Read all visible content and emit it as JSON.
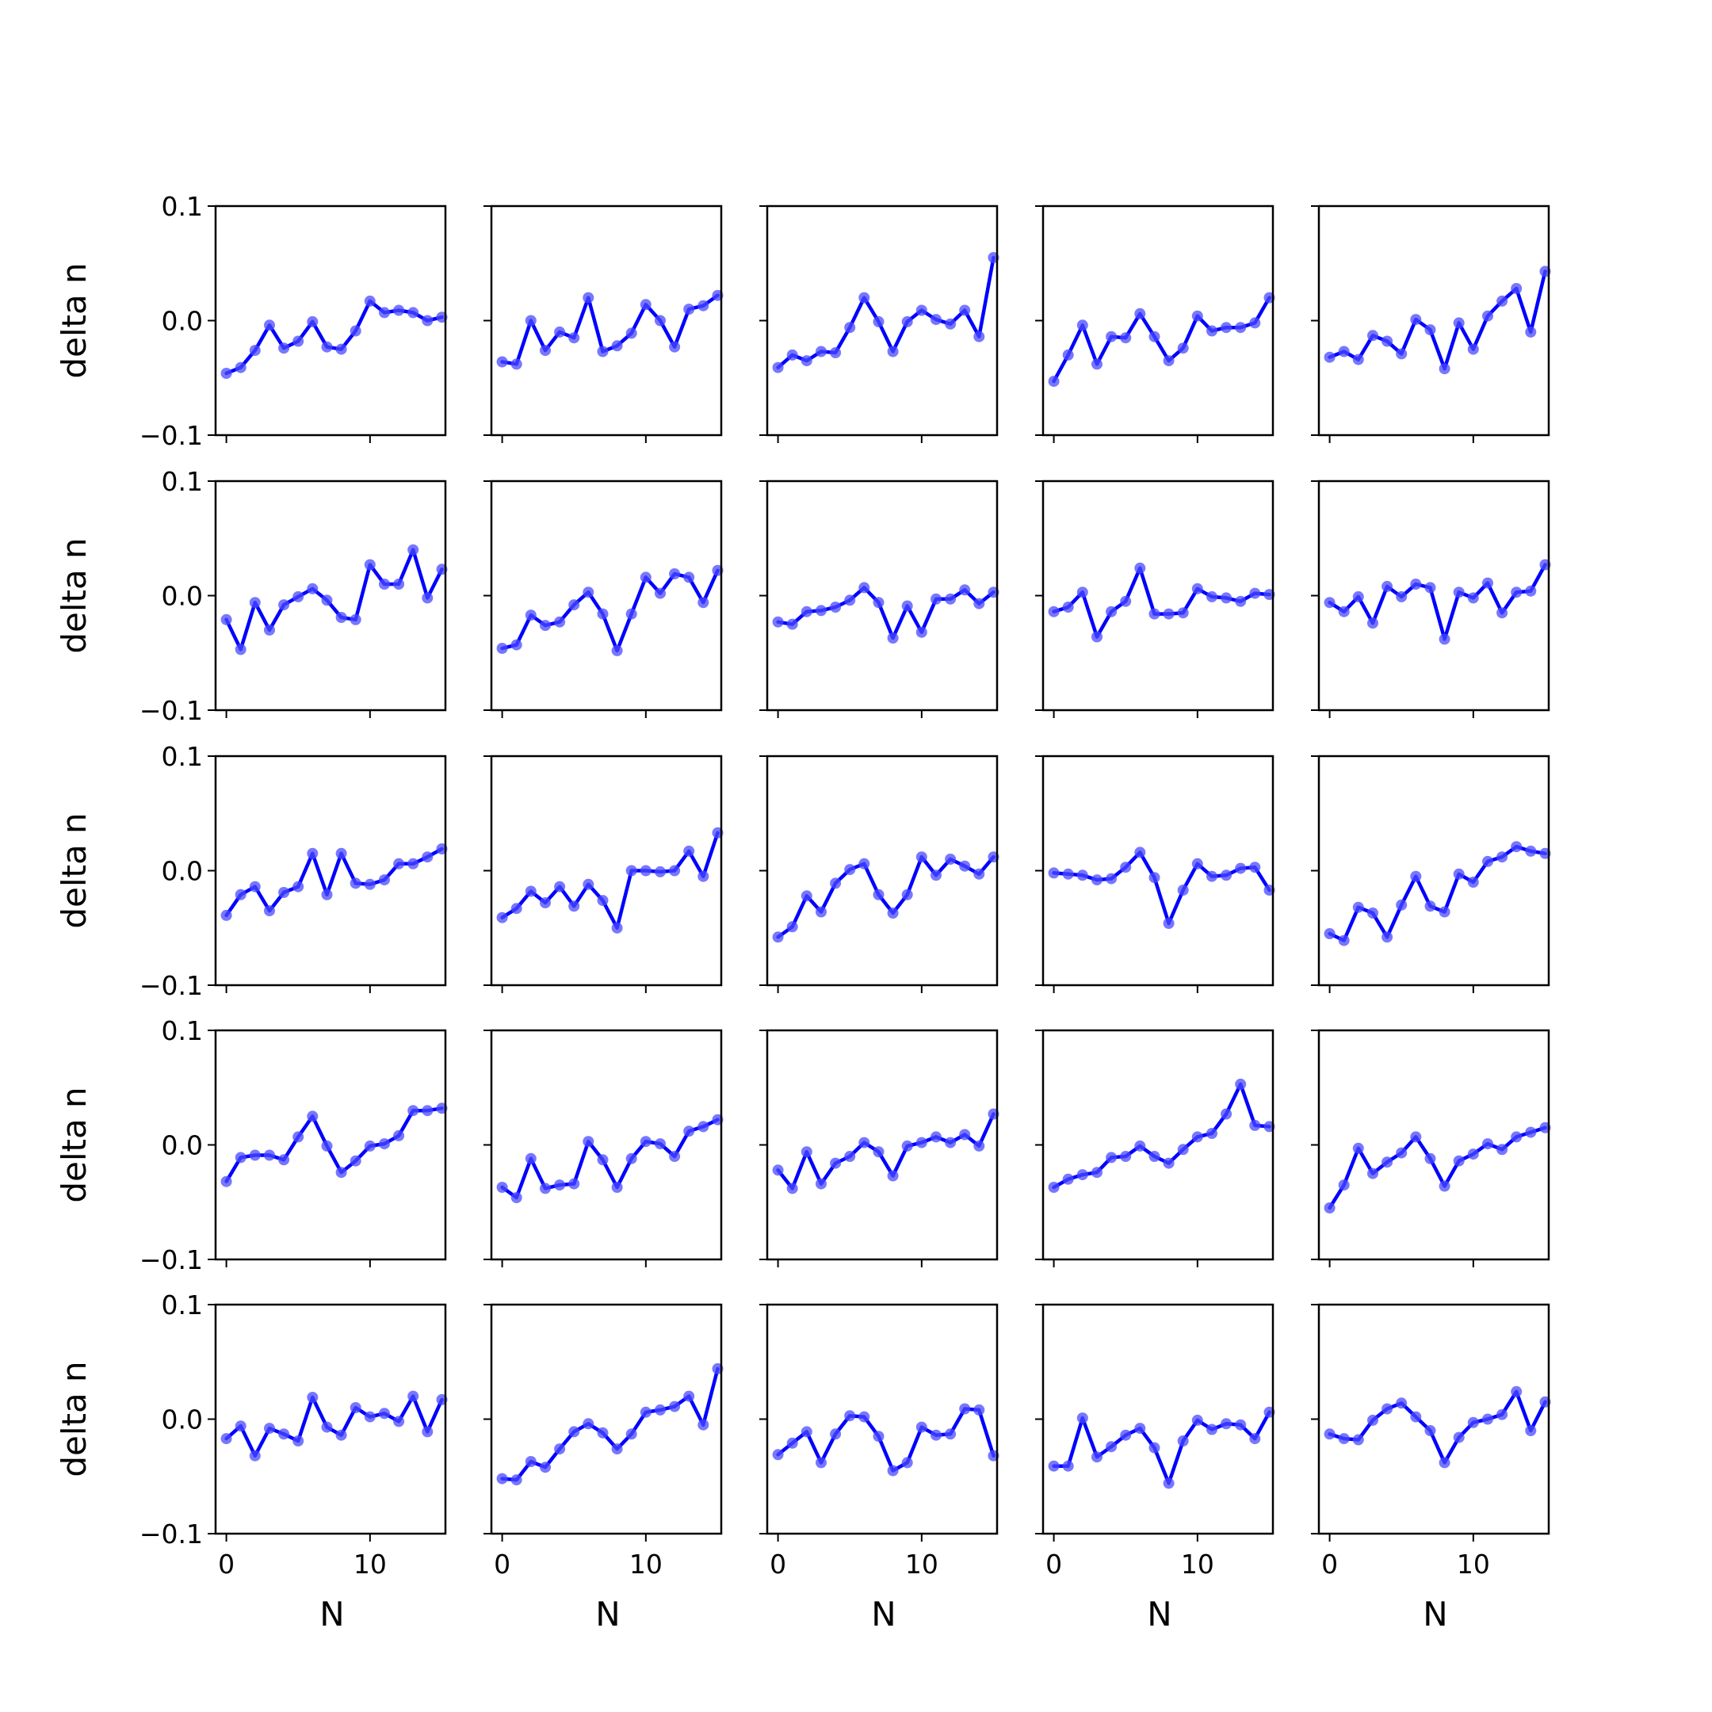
{
  "chart_data": {
    "type": "line",
    "layout": "5x5 grid of small multiples",
    "x": [
      0,
      1,
      2,
      3,
      4,
      5,
      6,
      7,
      8,
      9,
      10,
      11,
      12,
      13,
      14,
      15
    ],
    "xlabel": "N",
    "ylabel": "delta n",
    "xticks": [
      0,
      10
    ],
    "yticks": [
      -0.1,
      0.0,
      0.1
    ],
    "ytick_labels": [
      "−0.1",
      "0.0",
      "0.1"
    ],
    "xtick_labels": [
      "0",
      "10"
    ],
    "ylim": [
      -0.1,
      0.1
    ],
    "xlim": [
      -0.75,
      15.25
    ],
    "line_color": "#0000ff",
    "marker_color": "#4a4aff",
    "marker": "circle",
    "grid": false,
    "legend": "none",
    "panels": [
      [
        -0.046,
        -0.041,
        -0.026,
        -0.004,
        -0.024,
        -0.018,
        -0.001,
        -0.023,
        -0.025,
        -0.009,
        0.017,
        0.007,
        0.009,
        0.007,
        0.0,
        0.003
      ],
      [
        -0.036,
        -0.038,
        0.0,
        -0.026,
        -0.01,
        -0.015,
        0.02,
        -0.027,
        -0.022,
        -0.011,
        0.014,
        0.0,
        -0.023,
        0.01,
        0.013,
        0.022
      ],
      [
        -0.041,
        -0.03,
        -0.035,
        -0.027,
        -0.028,
        -0.006,
        0.02,
        -0.001,
        -0.027,
        -0.001,
        0.009,
        0.001,
        -0.003,
        0.009,
        -0.014,
        0.055
      ],
      [
        -0.053,
        -0.03,
        -0.004,
        -0.038,
        -0.014,
        -0.015,
        0.006,
        -0.014,
        -0.035,
        -0.024,
        0.004,
        -0.009,
        -0.006,
        -0.006,
        -0.002,
        0.02
      ],
      [
        -0.032,
        -0.027,
        -0.034,
        -0.013,
        -0.018,
        -0.029,
        0.001,
        -0.008,
        -0.042,
        -0.002,
        -0.025,
        0.004,
        0.017,
        0.028,
        -0.01,
        0.043
      ],
      [
        -0.021,
        -0.047,
        -0.006,
        -0.03,
        -0.008,
        -0.001,
        0.006,
        -0.004,
        -0.019,
        -0.021,
        0.027,
        0.01,
        0.01,
        0.04,
        -0.002,
        0.023
      ],
      [
        -0.046,
        -0.043,
        -0.017,
        -0.026,
        -0.023,
        -0.008,
        0.003,
        -0.016,
        -0.048,
        -0.016,
        0.016,
        0.002,
        0.019,
        0.016,
        -0.006,
        0.022
      ],
      [
        -0.023,
        -0.025,
        -0.014,
        -0.013,
        -0.01,
        -0.004,
        0.007,
        -0.006,
        -0.037,
        -0.009,
        -0.032,
        -0.003,
        -0.003,
        0.005,
        -0.007,
        0.003
      ],
      [
        -0.014,
        -0.01,
        0.003,
        -0.036,
        -0.014,
        -0.005,
        0.024,
        -0.016,
        -0.016,
        -0.015,
        0.006,
        -0.001,
        -0.002,
        -0.005,
        0.002,
        0.001
      ],
      [
        -0.006,
        -0.014,
        -0.001,
        -0.024,
        0.008,
        -0.001,
        0.01,
        0.007,
        -0.038,
        0.003,
        -0.002,
        0.011,
        -0.015,
        0.003,
        0.004,
        0.027
      ],
      [
        -0.039,
        -0.021,
        -0.014,
        -0.035,
        -0.019,
        -0.014,
        0.015,
        -0.021,
        0.015,
        -0.011,
        -0.012,
        -0.008,
        0.006,
        0.006,
        0.012,
        0.019
      ],
      [
        -0.041,
        -0.033,
        -0.018,
        -0.028,
        -0.014,
        -0.031,
        -0.012,
        -0.026,
        -0.05,
        0.0,
        0.0,
        -0.001,
        0.0,
        0.017,
        -0.005,
        0.033
      ],
      [
        -0.058,
        -0.049,
        -0.022,
        -0.036,
        -0.011,
        0.001,
        0.006,
        -0.021,
        -0.037,
        -0.021,
        0.012,
        -0.004,
        0.01,
        0.004,
        -0.003,
        0.012
      ],
      [
        -0.002,
        -0.003,
        -0.004,
        -0.008,
        -0.007,
        0.003,
        0.016,
        -0.006,
        -0.046,
        -0.017,
        0.006,
        -0.005,
        -0.004,
        0.002,
        0.003,
        -0.017
      ],
      [
        -0.055,
        -0.061,
        -0.032,
        -0.037,
        -0.058,
        -0.03,
        -0.005,
        -0.031,
        -0.036,
        -0.003,
        -0.01,
        0.008,
        0.012,
        0.021,
        0.017,
        0.015
      ],
      [
        -0.032,
        -0.011,
        -0.009,
        -0.009,
        -0.013,
        0.007,
        0.025,
        -0.001,
        -0.024,
        -0.014,
        -0.001,
        0.001,
        0.008,
        0.03,
        0.03,
        0.032
      ],
      [
        -0.037,
        -0.046,
        -0.012,
        -0.038,
        -0.035,
        -0.034,
        0.003,
        -0.013,
        -0.037,
        -0.012,
        0.003,
        0.001,
        -0.01,
        0.012,
        0.016,
        0.022
      ],
      [
        -0.022,
        -0.038,
        -0.006,
        -0.034,
        -0.016,
        -0.01,
        0.002,
        -0.006,
        -0.027,
        -0.001,
        0.002,
        0.007,
        0.002,
        0.009,
        -0.001,
        0.027
      ],
      [
        -0.037,
        -0.03,
        -0.026,
        -0.024,
        -0.011,
        -0.01,
        -0.001,
        -0.01,
        -0.016,
        -0.004,
        0.007,
        0.01,
        0.027,
        0.053,
        0.017,
        0.016
      ],
      [
        -0.055,
        -0.035,
        -0.003,
        -0.025,
        -0.015,
        -0.007,
        0.007,
        -0.012,
        -0.036,
        -0.014,
        -0.008,
        0.001,
        -0.004,
        0.007,
        0.011,
        0.015
      ],
      [
        -0.017,
        -0.006,
        -0.032,
        -0.008,
        -0.013,
        -0.019,
        0.019,
        -0.007,
        -0.014,
        0.01,
        0.002,
        0.005,
        -0.002,
        0.02,
        -0.011,
        0.017
      ],
      [
        -0.052,
        -0.053,
        -0.037,
        -0.042,
        -0.026,
        -0.011,
        -0.004,
        -0.012,
        -0.026,
        -0.013,
        0.006,
        0.008,
        0.011,
        0.02,
        -0.005,
        0.044
      ],
      [
        -0.031,
        -0.021,
        -0.011,
        -0.038,
        -0.013,
        0.003,
        0.002,
        -0.015,
        -0.045,
        -0.038,
        -0.007,
        -0.014,
        -0.013,
        0.009,
        0.008,
        -0.032
      ],
      [
        -0.041,
        -0.041,
        0.001,
        -0.033,
        -0.024,
        -0.014,
        -0.008,
        -0.025,
        -0.056,
        -0.019,
        -0.001,
        -0.009,
        -0.004,
        -0.005,
        -0.017,
        0.006
      ],
      [
        -0.013,
        -0.017,
        -0.018,
        -0.001,
        0.009,
        0.014,
        0.002,
        -0.01,
        -0.038,
        -0.016,
        -0.003,
        -0.0,
        0.004,
        0.024,
        -0.01,
        0.015
      ]
    ]
  }
}
